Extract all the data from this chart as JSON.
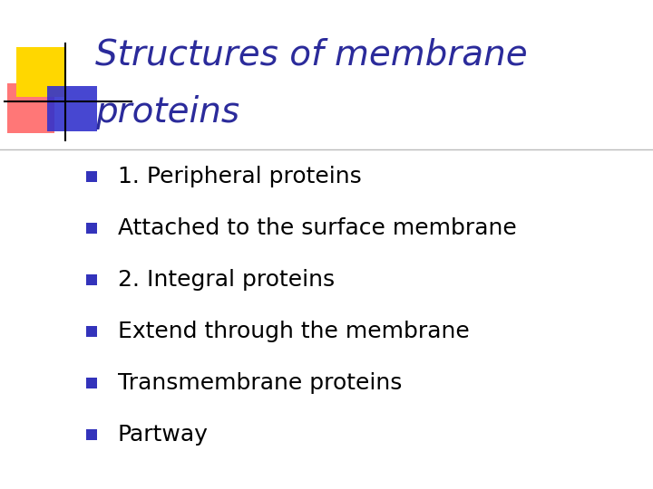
{
  "title_line1": "Structures of membrane",
  "title_line2": "proteins",
  "title_color": "#2B2B9B",
  "bg_color": "#FFFFFF",
  "bullet_color": "#3333BB",
  "bullet_text_color": "#000000",
  "bullet_items": [
    "1. Peripheral proteins",
    "Attached to the surface membrane",
    "2. Integral proteins",
    "Extend through the membrane",
    "Transmembrane proteins",
    "Partway"
  ],
  "title_fontsize": 28,
  "bullet_fontsize": 18,
  "separator_color": "#BBBBBB",
  "yellow_color": "#FFD700",
  "red_color": "#FF5555",
  "blue_logo_color": "#3333CC"
}
